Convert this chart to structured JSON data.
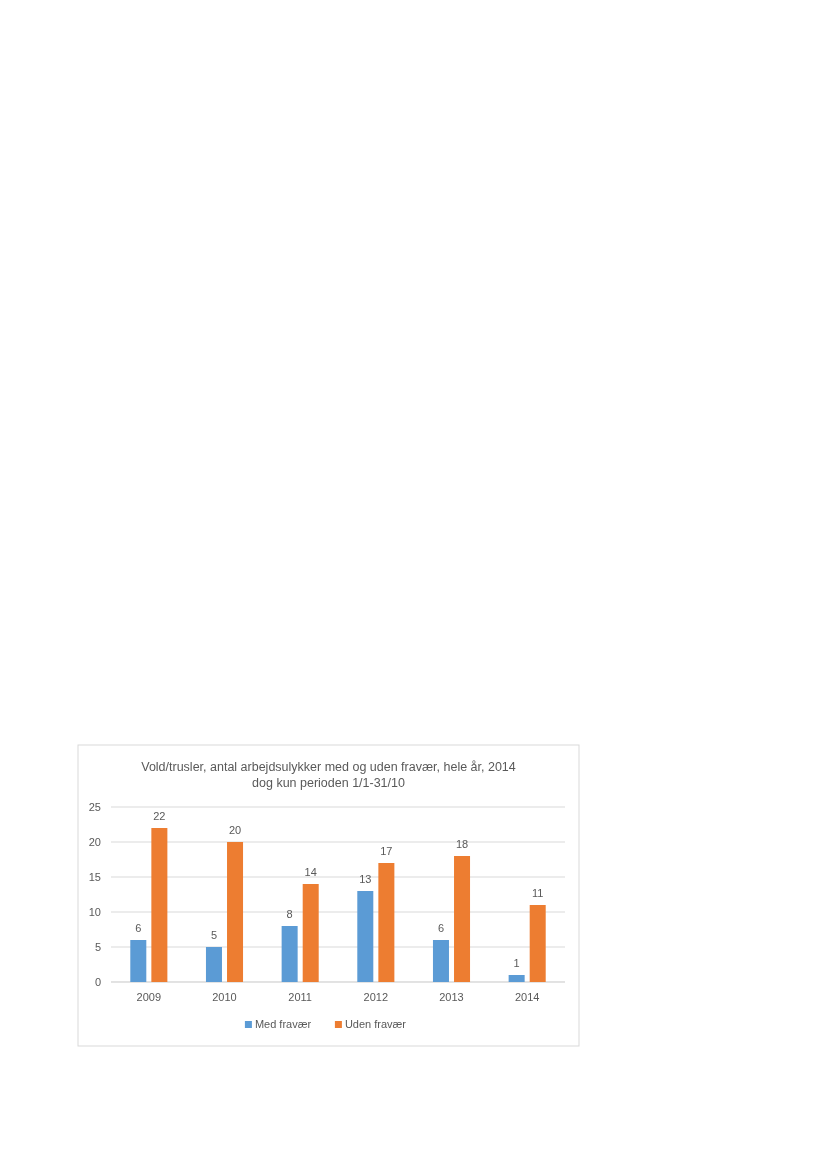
{
  "chart_data": {
    "type": "bar",
    "title": "Vold/trusler, antal arbejdsulykker med og uden fravær, hele år, 2014\ndog kun perioden 1/1-31/10",
    "categories": [
      "2009",
      "2010",
      "2011",
      "2012",
      "2013",
      "2014"
    ],
    "series": [
      {
        "name": "Med fravær",
        "color": "#5b9bd5",
        "values": [
          6,
          5,
          8,
          13,
          6,
          1
        ]
      },
      {
        "name": "Uden fravær",
        "color": "#ed7d31",
        "values": [
          22,
          20,
          14,
          17,
          18,
          11
        ]
      }
    ],
    "ylim": [
      0,
      25
    ],
    "yticks": [
      0,
      5,
      10,
      15,
      20,
      25
    ],
    "grid": "y",
    "legend": "bottom",
    "data_labels": true
  }
}
